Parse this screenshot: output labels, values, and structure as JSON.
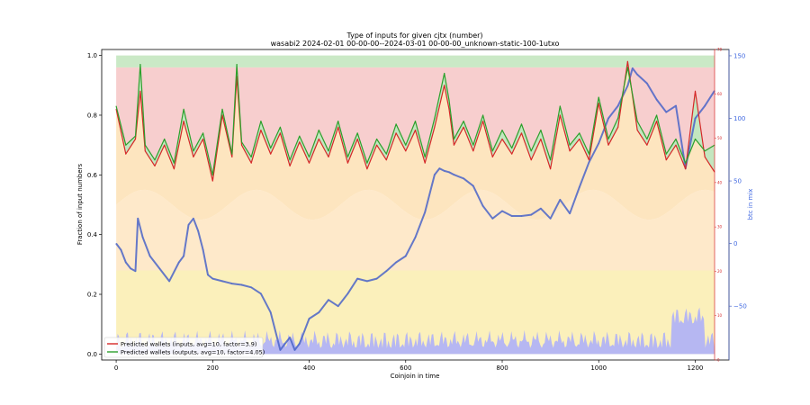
{
  "chart_data": {
    "type": "line",
    "title": "Type of inputs for given cjtx (number)",
    "subtitle": "wasabi2 2024-02-01 00-00-00--2024-03-01 00-00-00_unknown-static-100-1utxo",
    "xlabel": "Coinjoin in time",
    "ylabel": "Fraction of input numbers",
    "ylabel_right": "btc in mix",
    "xlim": [
      -30,
      1270
    ],
    "ylim": [
      -0.02,
      1.02
    ],
    "x_ticks": [
      "0",
      "200",
      "400",
      "600",
      "800",
      "1000",
      "1200"
    ],
    "y_ticks": [
      "0.0",
      "0.2",
      "0.4",
      "0.6",
      "0.8",
      "1.0"
    ],
    "right_red_ticks": [
      "0",
      "10",
      "20",
      "30",
      "40",
      "50",
      "60",
      "70"
    ],
    "right_red_range": [
      0,
      70
    ],
    "right_blue_ticks": [
      "−50",
      "0",
      "50",
      "100",
      "150"
    ],
    "right_blue_range": [
      -93,
      155
    ],
    "colors": {
      "inputs_line": "#d62728",
      "outputs_line": "#2ca02c",
      "btc_line": "#4a64c8",
      "fill_pink": "#f6c9c9",
      "fill_green": "#bde3b8",
      "fill_orange": "#fde2b8",
      "fill_yellow": "#fbeeb4",
      "fill_blue": "#aeb0f8"
    },
    "series": [
      {
        "name": "Predicted wallets (inputs, avg=10, factor=3.9)",
        "x": [
          0,
          20,
          40,
          50,
          60,
          80,
          100,
          120,
          140,
          160,
          180,
          200,
          220,
          240,
          250,
          260,
          280,
          300,
          320,
          340,
          360,
          380,
          400,
          420,
          440,
          460,
          480,
          500,
          520,
          540,
          560,
          580,
          600,
          620,
          640,
          660,
          680,
          690,
          700,
          720,
          740,
          760,
          780,
          800,
          820,
          840,
          860,
          880,
          900,
          920,
          940,
          960,
          980,
          1000,
          1020,
          1040,
          1060,
          1080,
          1100,
          1120,
          1140,
          1160,
          1180,
          1200,
          1220,
          1240
        ],
        "values": [
          0.82,
          0.67,
          0.72,
          0.88,
          0.68,
          0.63,
          0.7,
          0.62,
          0.78,
          0.66,
          0.72,
          0.58,
          0.8,
          0.66,
          0.93,
          0.7,
          0.64,
          0.75,
          0.67,
          0.74,
          0.63,
          0.71,
          0.64,
          0.72,
          0.66,
          0.76,
          0.64,
          0.72,
          0.62,
          0.7,
          0.65,
          0.74,
          0.68,
          0.75,
          0.64,
          0.76,
          0.9,
          0.82,
          0.7,
          0.76,
          0.68,
          0.78,
          0.66,
          0.72,
          0.67,
          0.74,
          0.65,
          0.72,
          0.62,
          0.8,
          0.68,
          0.72,
          0.65,
          0.84,
          0.7,
          0.76,
          0.98,
          0.75,
          0.7,
          0.78,
          0.65,
          0.7,
          0.62,
          0.88,
          0.66,
          0.61
        ]
      },
      {
        "name": "Predicted wallets (outputs, avg=10, factor=4.05)",
        "x": [
          0,
          20,
          40,
          50,
          60,
          80,
          100,
          120,
          140,
          160,
          180,
          200,
          220,
          240,
          250,
          260,
          280,
          300,
          320,
          340,
          360,
          380,
          400,
          420,
          440,
          460,
          480,
          500,
          520,
          540,
          560,
          580,
          600,
          620,
          640,
          660,
          680,
          690,
          700,
          720,
          740,
          760,
          780,
          800,
          820,
          840,
          860,
          880,
          900,
          920,
          940,
          960,
          980,
          1000,
          1020,
          1040,
          1060,
          1080,
          1100,
          1120,
          1140,
          1160,
          1180,
          1200,
          1220,
          1240
        ],
        "values": [
          0.83,
          0.7,
          0.73,
          0.97,
          0.7,
          0.65,
          0.72,
          0.64,
          0.82,
          0.68,
          0.74,
          0.6,
          0.82,
          0.67,
          0.97,
          0.71,
          0.66,
          0.78,
          0.69,
          0.76,
          0.65,
          0.73,
          0.66,
          0.75,
          0.68,
          0.78,
          0.66,
          0.74,
          0.64,
          0.72,
          0.67,
          0.77,
          0.7,
          0.78,
          0.66,
          0.79,
          0.94,
          0.85,
          0.72,
          0.78,
          0.7,
          0.8,
          0.68,
          0.75,
          0.69,
          0.77,
          0.68,
          0.75,
          0.65,
          0.83,
          0.7,
          0.74,
          0.67,
          0.86,
          0.72,
          0.79,
          0.96,
          0.78,
          0.72,
          0.8,
          0.67,
          0.72,
          0.64,
          0.72,
          0.68,
          0.7
        ]
      },
      {
        "name": "btc in mix",
        "x": [
          0,
          10,
          20,
          30,
          40,
          45,
          55,
          70,
          90,
          110,
          130,
          140,
          150,
          160,
          170,
          180,
          190,
          200,
          220,
          240,
          260,
          280,
          300,
          320,
          340,
          350,
          360,
          370,
          380,
          390,
          400,
          420,
          440,
          460,
          480,
          500,
          520,
          540,
          560,
          580,
          600,
          620,
          640,
          660,
          670,
          680,
          690,
          700,
          720,
          740,
          760,
          780,
          800,
          820,
          840,
          860,
          880,
          900,
          920,
          940,
          960,
          980,
          1000,
          1020,
          1040,
          1060,
          1070,
          1080,
          1100,
          1120,
          1140,
          1160,
          1180,
          1200,
          1220,
          1240
        ],
        "values": [
          0,
          -5,
          -15,
          -20,
          -22,
          20,
          5,
          -10,
          -20,
          -30,
          -15,
          -10,
          15,
          20,
          10,
          -5,
          -25,
          -28,
          -30,
          -32,
          -33,
          -35,
          -40,
          -55,
          -85,
          -80,
          -75,
          -85,
          -80,
          -70,
          -60,
          -55,
          -45,
          -50,
          -40,
          -28,
          -30,
          -28,
          -22,
          -15,
          -10,
          5,
          25,
          55,
          60,
          58,
          57,
          55,
          52,
          46,
          30,
          20,
          26,
          22,
          22,
          23,
          28,
          20,
          35,
          24,
          45,
          65,
          80,
          100,
          110,
          126,
          140,
          135,
          128,
          115,
          105,
          110,
          60,
          100,
          110,
          122
        ]
      }
    ]
  },
  "legend": {
    "inputs": "Predicted wallets (inputs, avg=10, factor=3.9)",
    "outputs": "Predicted wallets (outputs, avg=10, factor=4.05)"
  }
}
